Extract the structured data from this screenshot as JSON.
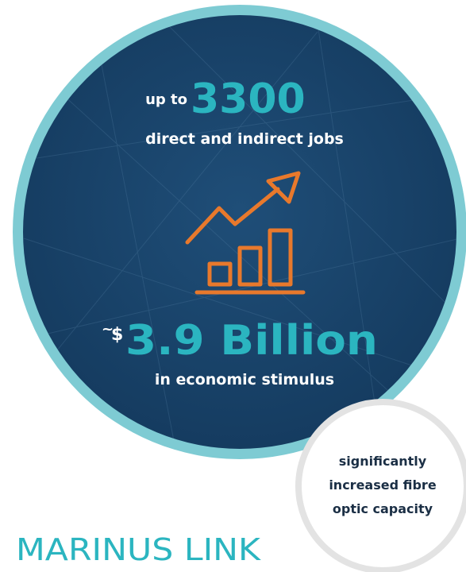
{
  "jobs": {
    "prefix": "up to",
    "value": "3300",
    "caption": "direct and indirect jobs"
  },
  "stimulus": {
    "tilde": "~",
    "currency": "$",
    "value": "3.9 Billion",
    "caption": "in economic stimulus"
  },
  "badge": {
    "lines": [
      "significantly",
      "increased fibre",
      "optic capacity"
    ]
  },
  "brand": "MARINUS LINK"
}
